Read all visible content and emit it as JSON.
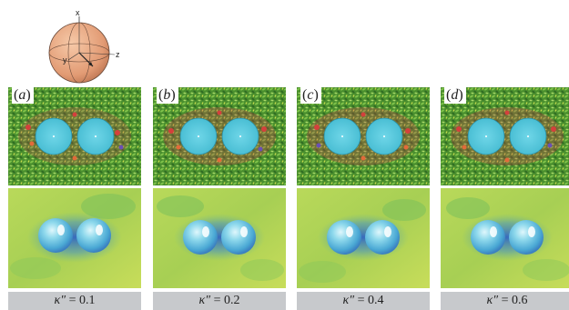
{
  "axes": {
    "x": "x",
    "y": "y",
    "z": "z"
  },
  "panels": [
    {
      "letter": "a",
      "kappa_symbol": "κ″",
      "kappa_value": "= 0.1"
    },
    {
      "letter": "b",
      "kappa_symbol": "κ″",
      "kappa_value": "= 0.2"
    },
    {
      "letter": "c",
      "kappa_symbol": "κ″",
      "kappa_value": "= 0.4"
    },
    {
      "letter": "d",
      "kappa_symbol": "κ″",
      "kappa_value": "= 0.6"
    }
  ],
  "colors": {
    "sphere_fill": "#e8a27a",
    "particle_cyan": "#4dc6dc",
    "field_green": "#5fae3a",
    "field_yellow": "#d8e45a",
    "label_bar": "#c7c9cc"
  }
}
